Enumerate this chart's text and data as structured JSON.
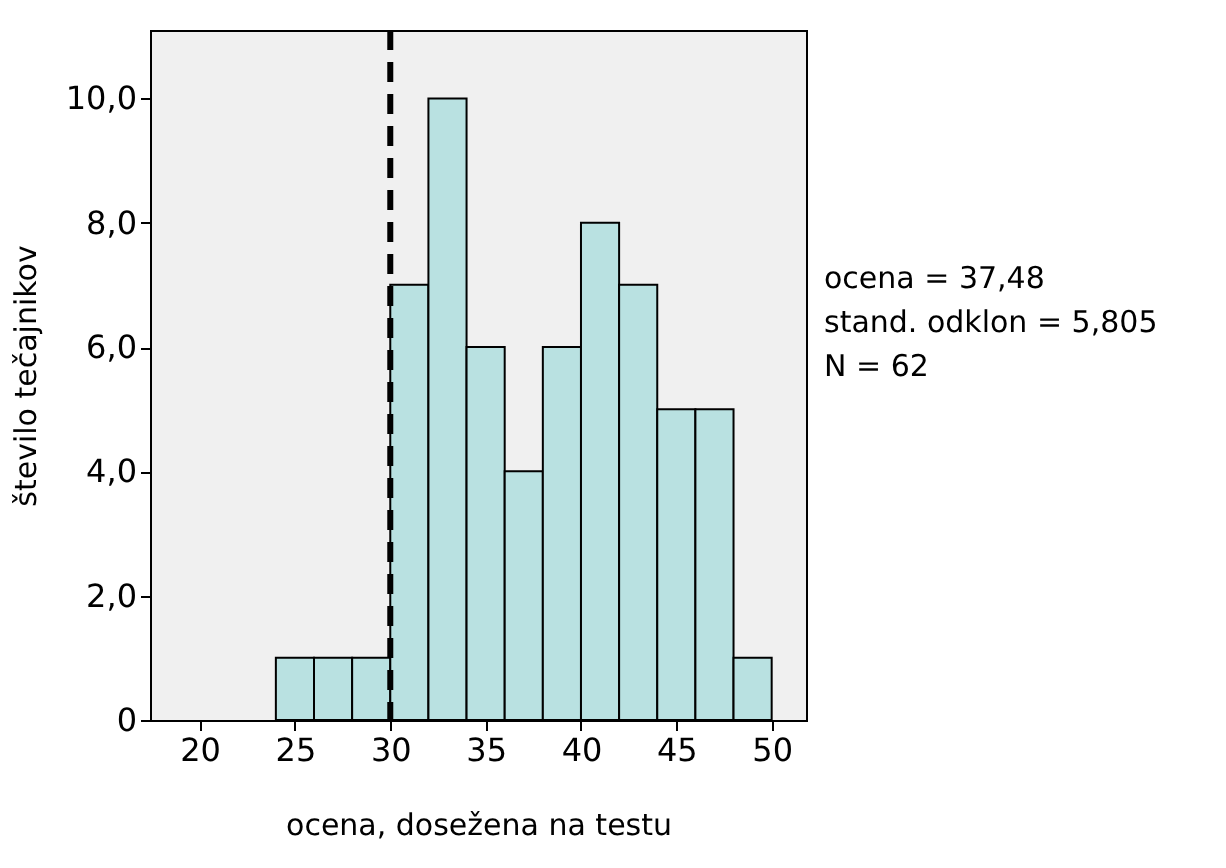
{
  "chart_data": {
    "type": "histogram",
    "xlabel": "ocena, dosežena na testu",
    "ylabel": "število tečajnikov",
    "bins": [
      24,
      26,
      28,
      30,
      32,
      34,
      36,
      38,
      40,
      42,
      44,
      46,
      48,
      50
    ],
    "values": [
      1,
      1,
      1,
      7,
      10,
      6,
      4,
      6,
      8,
      7,
      5,
      5,
      1
    ],
    "color": "#b9e1e1",
    "xlim": [
      17.4,
      51.8
    ],
    "xticks": [
      20,
      25,
      30,
      35,
      40,
      45,
      50
    ],
    "ylim": [
      0,
      11.1
    ],
    "yticks": [
      {
        "value": 0,
        "label": "0"
      },
      {
        "value": 2,
        "label": "2,0"
      },
      {
        "value": 4,
        "label": "4,0"
      },
      {
        "value": 6,
        "label": "6,0"
      },
      {
        "value": 8,
        "label": "8,0"
      },
      {
        "value": 10,
        "label": "10,0"
      }
    ],
    "grid": false,
    "ref_lines": [
      {
        "axis": "x",
        "value": 30,
        "line_style": "dashed",
        "color": "#000000"
      }
    ],
    "annotations": [
      "ocena = 37,48",
      "stand. odklon = 5,805",
      "N = 62"
    ]
  }
}
